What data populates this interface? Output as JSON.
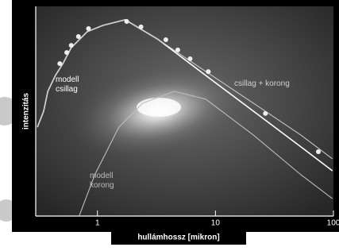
{
  "chart_data": {
    "type": "line",
    "xlabel": "hullámhossz [mikron]",
    "ylabel": "intenzitás",
    "xscale": "log",
    "xlim": [
      0.3,
      100
    ],
    "xticks": [
      1,
      10,
      100
    ],
    "ylim": [
      0,
      100
    ],
    "series": [
      {
        "name": "modell csillag",
        "color": "#ffffff",
        "x": [
          0.31,
          0.35,
          0.38,
          0.44,
          0.51,
          0.6,
          0.82,
          1.11,
          1.72,
          3.29,
          8.3,
          21,
          53,
          98
        ],
        "values": [
          42.4,
          50,
          59.5,
          67,
          72.7,
          80.3,
          87.9,
          90.9,
          93.6,
          84.1,
          67,
          50,
          33,
          21.6
        ]
      },
      {
        "name": "csillag + korong",
        "color": "#c8c8c8",
        "x": [
          0.31,
          0.35,
          0.38,
          0.44,
          0.51,
          0.6,
          0.82,
          1.11,
          1.72,
          3.29,
          8.3,
          21,
          53,
          98
        ],
        "values": [
          42.4,
          50,
          59.5,
          67,
          72.7,
          80.3,
          87.9,
          90.9,
          93.6,
          84.1,
          68.9,
          53.8,
          38.6,
          27.3
        ]
      },
      {
        "name": "modell korong",
        "color": "#bdbdbd",
        "x": [
          0.7,
          0.95,
          1.52,
          2.41,
          4.48,
          8.3,
          21,
          53,
          98
        ],
        "values": [
          0,
          19.7,
          42.4,
          53.8,
          59.5,
          55.7,
          38.6,
          19.7,
          8.3
        ]
      }
    ],
    "points": {
      "color": "#eeeeee",
      "x": [
        0.48,
        0.55,
        0.6,
        0.69,
        0.84,
        1.77,
        2.34,
        3.8,
        4.8,
        6.1,
        8.7,
        26.5,
        74.5
      ],
      "values": [
        72.7,
        78,
        81.4,
        85.6,
        89.4,
        92.8,
        90.2,
        84.1,
        79.2,
        75,
        68.9,
        48.9,
        30.7
      ]
    }
  }
}
